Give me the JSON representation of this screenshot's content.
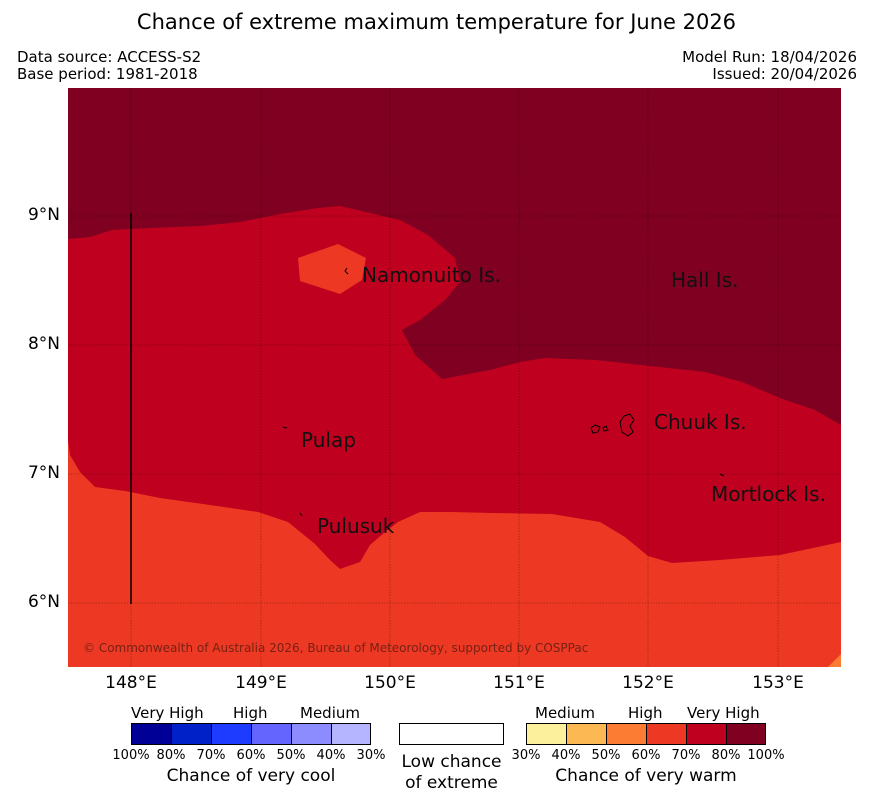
{
  "title": "Chance of extreme maximum temperature for June 2026",
  "data_source": "Data source: ACCESS-S2",
  "base_period": "Base period: 1981-2018",
  "model_run": "Model Run: 18/04/2026",
  "issued": "Issued: 20/04/2026",
  "map": {
    "lat_labels": [
      "9°N",
      "8°N",
      "7°N",
      "6°N"
    ],
    "lon_labels": [
      "148°E",
      "149°E",
      "150°E",
      "151°E",
      "152°E",
      "153°E"
    ],
    "places": [
      "Namonuito Is.",
      "Hall Is.",
      "Chuuk Is.",
      "Pulap",
      "Mortlock Is.",
      "Pulusuk"
    ],
    "copyright": "© Commonwealth of Australia 2026, Bureau of Meteorology, supported by COSPPac",
    "colors": {
      "c70_80": "#bf001f",
      "c80_100": "#7f0020",
      "c60_70": "#ed3923",
      "c50_60": "#fd7c33"
    }
  },
  "legend": {
    "cool": {
      "headers": [
        "Very High",
        "High",
        "Medium"
      ],
      "ticks": [
        "100%",
        "80%",
        "70%",
        "60%",
        "50%",
        "40%",
        "30%"
      ],
      "caption": "Chance of very cool",
      "colors": [
        "#000097",
        "#0021c8",
        "#1e3cff",
        "#6464ff",
        "#8c8cff",
        "#b4b4ff"
      ]
    },
    "low": {
      "caption_line1": "Low chance",
      "caption_line2": "of extreme"
    },
    "warm": {
      "headers": [
        "Medium",
        "High",
        "Very High"
      ],
      "ticks": [
        "30%",
        "40%",
        "50%",
        "60%",
        "70%",
        "80%",
        "100%"
      ],
      "caption": "Chance of very warm",
      "colors": [
        "#fdf09c",
        "#fcb852",
        "#fd7c33",
        "#ed3923",
        "#bf001f",
        "#7f0020"
      ]
    }
  }
}
